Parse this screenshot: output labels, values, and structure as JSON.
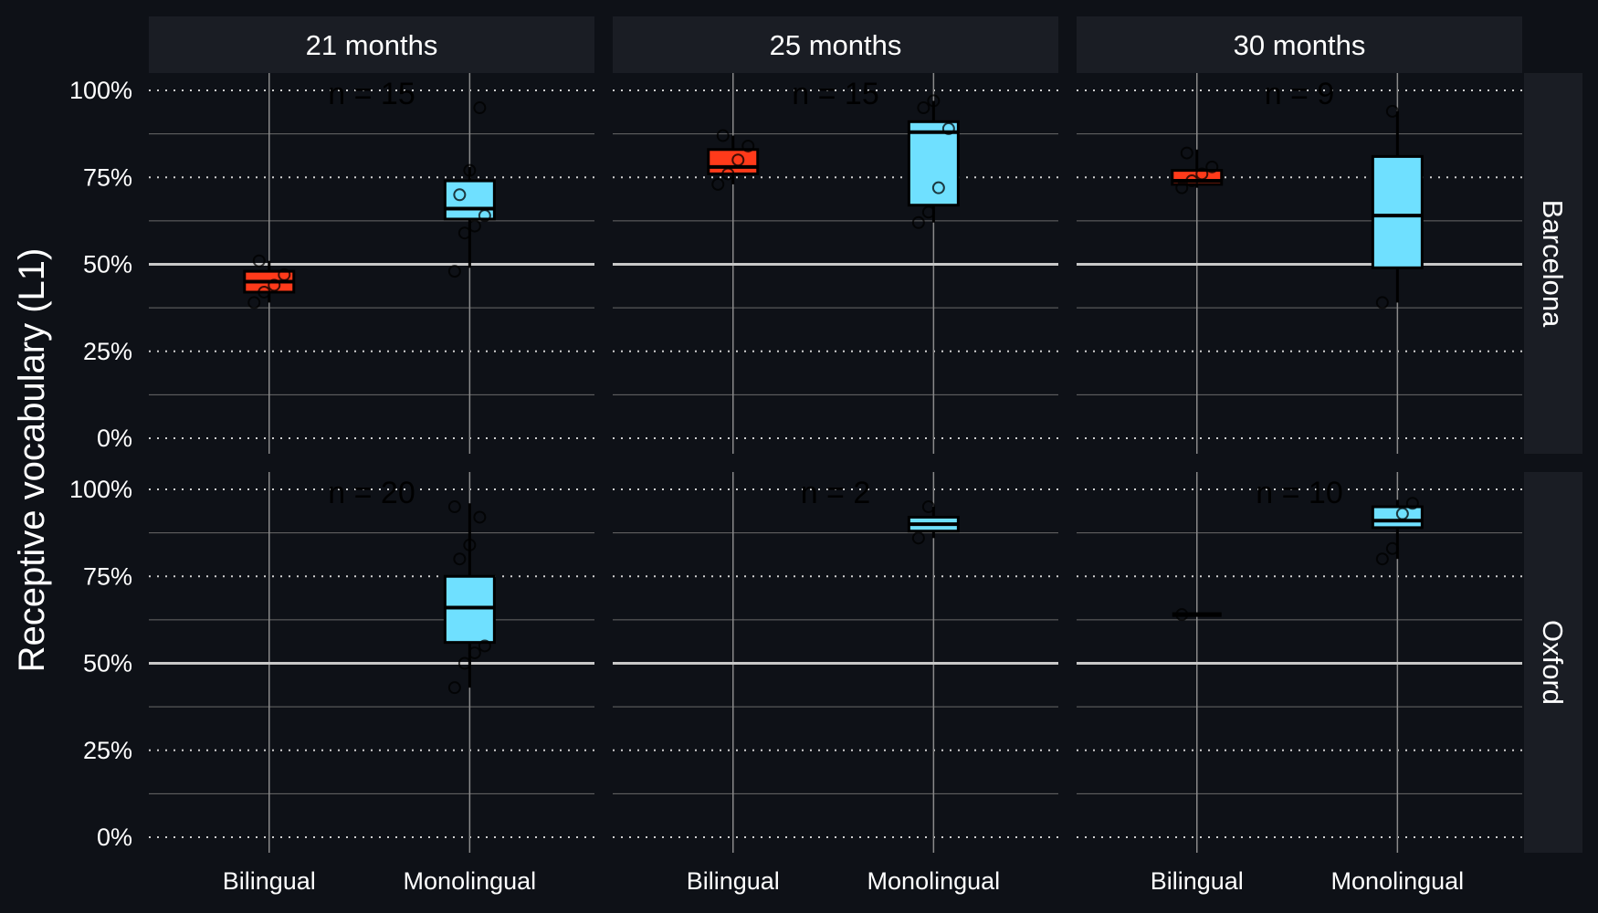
{
  "colors": {
    "background": "#0e1117",
    "panel": "#0e1117",
    "strip": "#1a1d24",
    "bilingual_fill": "#ff3a1a",
    "monolingual_fill": "#6fe0ff",
    "reference_line": "#c8c8c8",
    "grid": "#9a9a9a"
  },
  "chart_data": {
    "type": "box",
    "ylabel": "Receptive vocabulary (L1)",
    "xlabel": "",
    "ylim": [
      0,
      100
    ],
    "y_ticks": [
      "0%",
      "25%",
      "50%",
      "75%",
      "100%"
    ],
    "y_tick_values": [
      0,
      25,
      50,
      75,
      100
    ],
    "reference_line": 50,
    "categories": [
      "Bilingual",
      "Monolingual"
    ],
    "columns": [
      "21 months",
      "25 months",
      "30 months"
    ],
    "rows": [
      "Barcelona",
      "Oxford"
    ],
    "panels": [
      {
        "row": "Barcelona",
        "col": "21 months",
        "n_label": "n = 15",
        "boxes": [
          {
            "group": "Bilingual",
            "q1": 42,
            "median": 45,
            "q3": 48,
            "whisker_low": 39,
            "whisker_high": 51,
            "points": [
              39,
              42,
              44,
              47,
              51
            ]
          },
          {
            "group": "Monolingual",
            "q1": 63,
            "median": 66,
            "q3": 74,
            "whisker_low": 49,
            "whisker_high": 78,
            "points": [
              48,
              59,
              61,
              64,
              70,
              77,
              95
            ]
          }
        ]
      },
      {
        "row": "Barcelona",
        "col": "25 months",
        "n_label": "n = 15",
        "boxes": [
          {
            "group": "Bilingual",
            "q1": 76,
            "median": 78,
            "q3": 83,
            "whisker_low": 73,
            "whisker_high": 87,
            "points": [
              73,
              76,
              80,
              84,
              87
            ]
          },
          {
            "group": "Monolingual",
            "q1": 67,
            "median": 88,
            "q3": 91,
            "whisker_low": 62,
            "whisker_high": 97,
            "points": [
              62,
              65,
              72,
              89,
              95,
              97
            ]
          }
        ]
      },
      {
        "row": "Barcelona",
        "col": "30 months",
        "n_label": "n = 9",
        "boxes": [
          {
            "group": "Bilingual",
            "q1": 73,
            "median": 74,
            "q3": 77,
            "whisker_low": 72,
            "whisker_high": 83,
            "points": [
              72,
              74,
              76,
              78,
              82
            ]
          },
          {
            "group": "Monolingual",
            "q1": 49,
            "median": 64,
            "q3": 81,
            "whisker_low": 39,
            "whisker_high": 94,
            "points": [
              39,
              94
            ]
          }
        ]
      },
      {
        "row": "Oxford",
        "col": "21 months",
        "n_label": "n = 20",
        "boxes": [
          {
            "group": "Monolingual",
            "q1": 56,
            "median": 66,
            "q3": 75,
            "whisker_low": 43,
            "whisker_high": 96,
            "points": [
              43,
              50,
              53,
              55,
              80,
              84,
              92,
              95
            ]
          }
        ]
      },
      {
        "row": "Oxford",
        "col": "25 months",
        "n_label": "n = 2",
        "boxes": [
          {
            "group": "Monolingual",
            "q1": 88,
            "median": 90,
            "q3": 92,
            "whisker_low": 86,
            "whisker_high": 95,
            "points": [
              86,
              95
            ]
          }
        ]
      },
      {
        "row": "Oxford",
        "col": "30 months",
        "n_label": "n = 10",
        "boxes": [
          {
            "group": "Bilingual",
            "q1": 64,
            "median": 64,
            "q3": 64,
            "whisker_low": 64,
            "whisker_high": 64,
            "points": [
              64
            ]
          },
          {
            "group": "Monolingual",
            "q1": 89,
            "median": 91,
            "q3": 95,
            "whisker_low": 80,
            "whisker_high": 97,
            "points": [
              80,
              83,
              93,
              96
            ]
          }
        ]
      }
    ]
  }
}
